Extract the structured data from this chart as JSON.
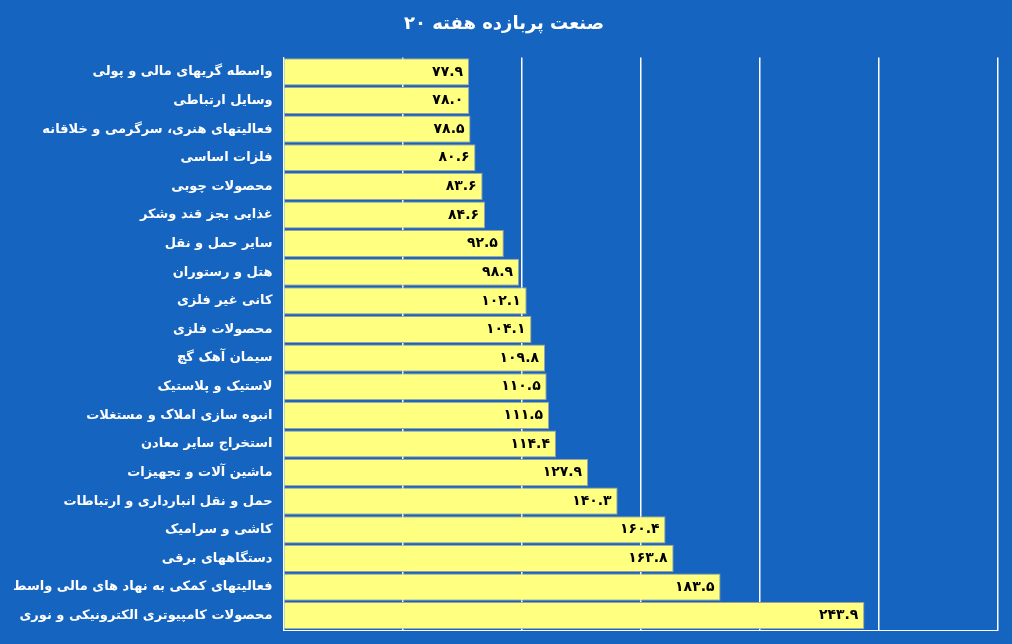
{
  "chart_data": {
    "type": "bar",
    "orientation": "horizontal",
    "title": "۲۰ صنعت پربازده هفته",
    "categories": [
      "واسطه گریهای مالی و پولی",
      "وسایل ارتباطی",
      "فعالیتهای هنری، سرگرمی و خلاقانه",
      "فلزات اساسی",
      "محصولات چوبی",
      "غذایی بجز قند وشکر",
      "سایر حمل و نقل",
      "هتل و رستوران",
      "کانی غیر فلزی",
      "محصولات فلزی",
      "سیمان آهک گچ",
      "لاستیک و پلاستیک",
      "انبوه سازی املاک و مستغلات",
      "استخراج سایر معادن",
      "ماشین آلات و تجهیزات",
      "حمل و نقل انبارداری و ارتباطات",
      "کاشی و سرامیک",
      "دستگاههای برقی",
      "فعالیتهای کمکی به نهاد های مالی واسط",
      "محصولات کامپیوتری الکترونیکی و نوری"
    ],
    "values": [
      77.9,
      78.0,
      78.5,
      80.6,
      83.6,
      84.6,
      92.5,
      98.9,
      102.1,
      104.1,
      109.8,
      110.5,
      111.5,
      114.4,
      127.9,
      140.3,
      160.4,
      163.8,
      183.5,
      243.9
    ],
    "value_labels": [
      "۷۷.۹",
      "۷۸.۰",
      "۷۸.۵",
      "۸۰.۶",
      "۸۳.۶",
      "۸۴.۶",
      "۹۲.۵",
      "۹۸.۹",
      "۱۰۲.۱",
      "۱۰۴.۱",
      "۱۰۹.۸",
      "۱۱۰.۵",
      "۱۱۱.۵",
      "۱۱۴.۴",
      "۱۲۷.۹",
      "۱۴۰.۳",
      "۱۶۰.۴",
      "۱۶۳.۸",
      "۱۸۳.۵",
      "۲۴۳.۹"
    ],
    "color": "#ffff80",
    "xlim": [
      0,
      300
    ],
    "xticks": [
      {
        "value": 0,
        "label": null
      },
      {
        "value": 50,
        "label": null
      },
      {
        "value": 100,
        "label": null
      },
      {
        "value": 150,
        "label": null
      },
      {
        "value": 200,
        "label": null
      },
      {
        "value": 250,
        "label": null
      },
      {
        "value": 300,
        "label": null
      }
    ],
    "grid": "x",
    "tick_labels": "y"
  }
}
